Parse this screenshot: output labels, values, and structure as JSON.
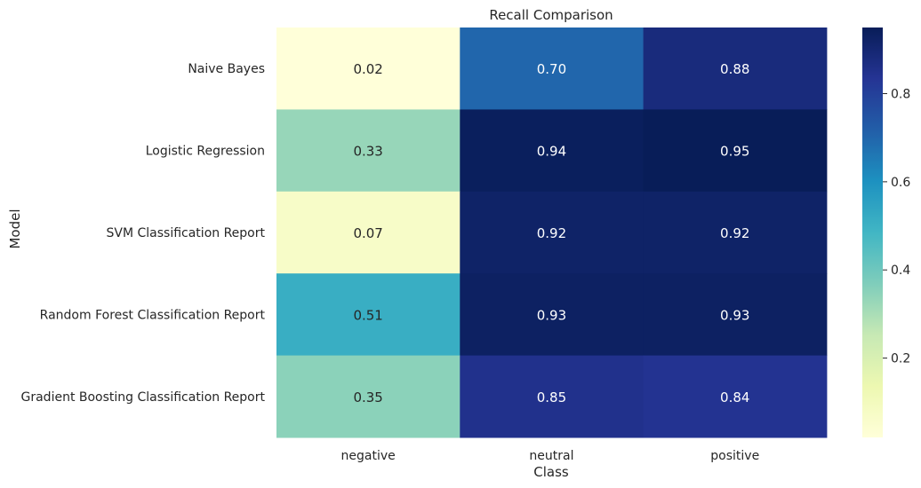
{
  "chart_data": {
    "type": "heatmap",
    "title": "Recall Comparison",
    "xlabel": "Class",
    "ylabel": "Model",
    "x_categories": [
      "negative",
      "neutral",
      "positive"
    ],
    "y_categories": [
      "Naive Bayes",
      "Logistic Regression",
      "SVM Classification Report",
      "Random Forest Classification Report",
      "Gradient Boosting Classification Report"
    ],
    "values": [
      [
        0.02,
        0.7,
        0.88
      ],
      [
        0.33,
        0.94,
        0.95
      ],
      [
        0.07,
        0.92,
        0.92
      ],
      [
        0.51,
        0.93,
        0.93
      ],
      [
        0.35,
        0.85,
        0.84
      ]
    ],
    "value_labels": [
      [
        "0.02",
        "0.70",
        "0.88"
      ],
      [
        "0.33",
        "0.94",
        "0.95"
      ],
      [
        "0.07",
        "0.92",
        "0.92"
      ],
      [
        "0.51",
        "0.93",
        "0.93"
      ],
      [
        "0.35",
        "0.85",
        "0.84"
      ]
    ],
    "colormap": "YlGnBu",
    "color_range": [
      0.02,
      0.95
    ],
    "colorbar_ticks": [
      "0.2",
      "0.4",
      "0.6",
      "0.8"
    ],
    "colorbar_tick_values": [
      0.2,
      0.4,
      0.6,
      0.8
    ]
  }
}
